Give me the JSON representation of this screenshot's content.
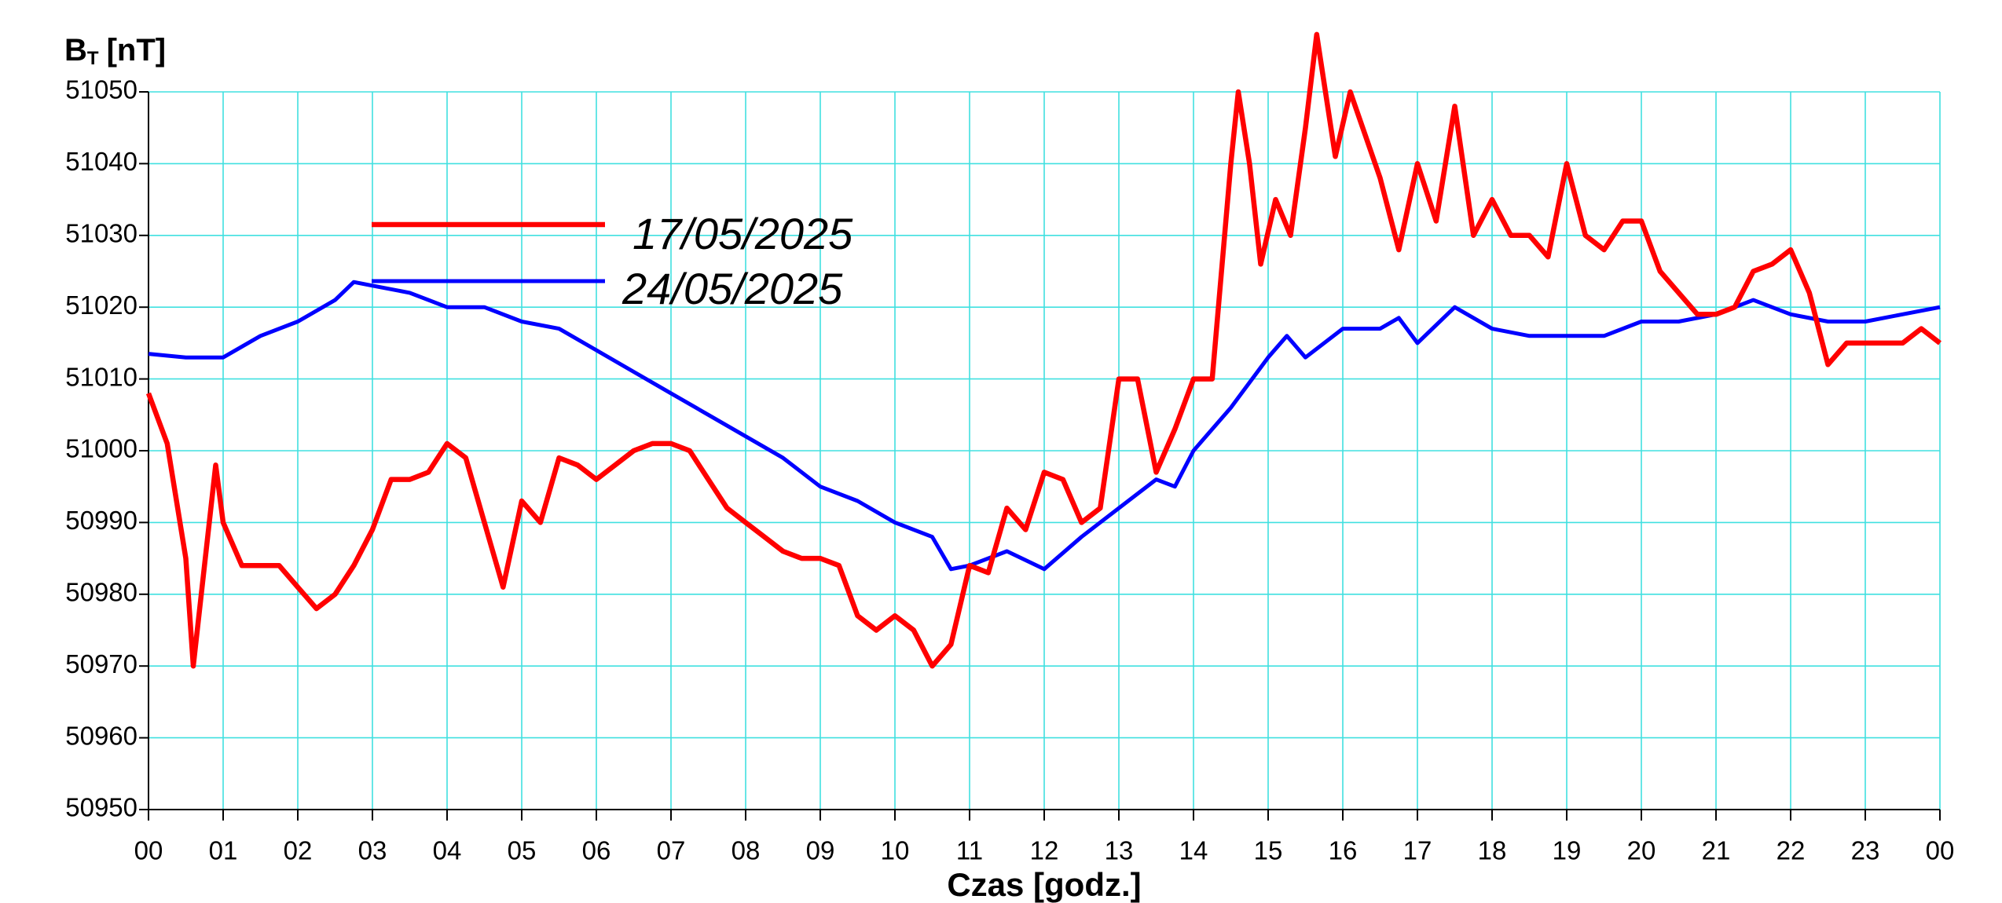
{
  "chart_data": {
    "type": "line",
    "y_label": {
      "main": "B",
      "sub": "T",
      "unit": "[nT]"
    },
    "x_label": "Czas [godz.]",
    "xlim": [
      0,
      24
    ],
    "xticks": [
      {
        "value": 0,
        "label": "00"
      },
      {
        "value": 1,
        "label": "01"
      },
      {
        "value": 2,
        "label": "02"
      },
      {
        "value": 3,
        "label": "03"
      },
      {
        "value": 4,
        "label": "04"
      },
      {
        "value": 5,
        "label": "05"
      },
      {
        "value": 6,
        "label": "06"
      },
      {
        "value": 7,
        "label": "07"
      },
      {
        "value": 8,
        "label": "08"
      },
      {
        "value": 9,
        "label": "09"
      },
      {
        "value": 10,
        "label": "10"
      },
      {
        "value": 11,
        "label": "11"
      },
      {
        "value": 12,
        "label": "12"
      },
      {
        "value": 13,
        "label": "13"
      },
      {
        "value": 14,
        "label": "14"
      },
      {
        "value": 15,
        "label": "15"
      },
      {
        "value": 16,
        "label": "16"
      },
      {
        "value": 17,
        "label": "17"
      },
      {
        "value": 18,
        "label": "18"
      },
      {
        "value": 19,
        "label": "19"
      },
      {
        "value": 20,
        "label": "20"
      },
      {
        "value": 21,
        "label": "21"
      },
      {
        "value": 22,
        "label": "22"
      },
      {
        "value": 23,
        "label": "23"
      },
      {
        "value": 24,
        "label": "00"
      }
    ],
    "ylim": [
      50950,
      51050
    ],
    "yticks": [
      50950,
      50960,
      50970,
      50980,
      50990,
      51000,
      51010,
      51020,
      51030,
      51040,
      51050
    ],
    "grid": true,
    "series": [
      {
        "name": "17/05/2025",
        "color": "#ff0000",
        "x": [
          0,
          0.25,
          0.5,
          0.6,
          0.9,
          1,
          1.25,
          1.5,
          1.75,
          2,
          2.25,
          2.5,
          2.75,
          3,
          3.25,
          3.5,
          3.75,
          4,
          4.25,
          4.5,
          4.75,
          5,
          5.25,
          5.5,
          5.75,
          6,
          6.25,
          6.5,
          6.75,
          7,
          7.25,
          7.5,
          7.75,
          8,
          8.25,
          8.5,
          8.75,
          9,
          9.25,
          9.5,
          9.75,
          10,
          10.25,
          10.5,
          10.75,
          11,
          11.25,
          11.5,
          11.75,
          12,
          12.25,
          12.5,
          12.75,
          13,
          13.25,
          13.5,
          13.75,
          14,
          14.25,
          14.5,
          14.6,
          14.75,
          14.9,
          15.1,
          15.3,
          15.5,
          15.65,
          15.9,
          16.1,
          16.3,
          16.5,
          16.75,
          17,
          17.25,
          17.5,
          17.75,
          18,
          18.25,
          18.5,
          18.75,
          19,
          19.25,
          19.5,
          19.75,
          20,
          20.25,
          20.5,
          20.75,
          21,
          21.25,
          21.5,
          21.75,
          22,
          22.25,
          22.5,
          22.75,
          23,
          23.25,
          23.5,
          23.75,
          24
        ],
        "values": [
          51008,
          51001,
          50985,
          50970,
          50998,
          50990,
          50984,
          50984,
          50984,
          50981,
          50978,
          50980,
          50984,
          50989,
          50996,
          50996,
          50997,
          51001,
          50999,
          50990,
          50981,
          50993,
          50990,
          50999,
          50998,
          50996,
          50998,
          51000,
          51001,
          51001,
          51000,
          50996,
          50992,
          50990,
          50988,
          50986,
          50985,
          50985,
          50984,
          50977,
          50975,
          50977,
          50975,
          50970,
          50973,
          50984,
          50983,
          50992,
          50989,
          50997,
          50996,
          50990,
          50992,
          51010,
          51010,
          50997,
          51003,
          51010,
          51010,
          51040,
          51050,
          51040,
          51026,
          51035,
          51030,
          51045,
          51058,
          51041,
          51050,
          51044,
          51038,
          51028,
          51040,
          51032,
          51048,
          51030,
          51035,
          51030,
          51030,
          51027,
          51040,
          51030,
          51028,
          51032,
          51032,
          51025,
          51022,
          51019,
          51019,
          51020,
          51025,
          51026,
          51028,
          51022,
          51012,
          51015,
          51015,
          51015,
          51015,
          51017,
          51015
        ]
      },
      {
        "name": "24/05/2025",
        "color": "#0000ff",
        "x": [
          0,
          0.5,
          1,
          1.5,
          2,
          2.5,
          2.75,
          3,
          3.5,
          4,
          4.5,
          5,
          5.5,
          6,
          6.5,
          7,
          7.5,
          8,
          8.5,
          9,
          9.5,
          10,
          10.5,
          10.75,
          11,
          11.5,
          12,
          12.5,
          13,
          13.5,
          13.75,
          14,
          14.5,
          15,
          15.25,
          15.5,
          16,
          16.5,
          16.75,
          17,
          17.5,
          18,
          18.5,
          19,
          19.5,
          20,
          20.5,
          21,
          21.5,
          22,
          22.5,
          23,
          23.5,
          24
        ],
        "values": [
          51013.5,
          51013,
          51013,
          51016,
          51018,
          51021,
          51023.5,
          51023,
          51022,
          51020,
          51020,
          51018,
          51017,
          51014,
          51011,
          51008,
          51005,
          51002,
          50999,
          50995,
          50993,
          50990,
          50988,
          50983.5,
          50984,
          50986,
          50983.5,
          50988,
          50992,
          50996,
          50995,
          51000,
          51006,
          51013,
          51016,
          51013,
          51017,
          51017,
          51018.5,
          51015,
          51020,
          51017,
          51016,
          51016,
          51016,
          51018,
          51018,
          51019,
          51021,
          51019,
          51018,
          51018,
          51019,
          51020
        ]
      }
    ]
  }
}
